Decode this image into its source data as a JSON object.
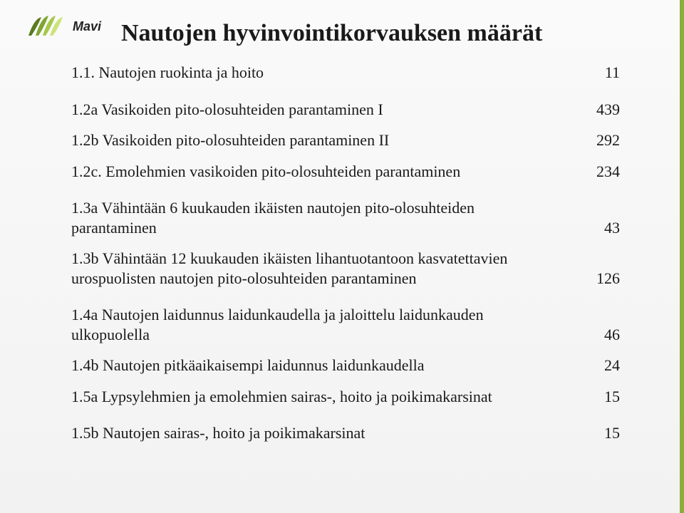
{
  "logo": {
    "text": "Mavi",
    "text_color": "#222222",
    "fontsize": 18,
    "leaf_colors": [
      "#5a7a1f",
      "#7ea62e",
      "#a6c84a",
      "#cde37a"
    ]
  },
  "title": {
    "text": "Nautojen hyvinvointikorvauksen määrät",
    "fontsize": 34,
    "color": "#1a1a1a"
  },
  "body": {
    "fontsize": 22,
    "color": "#1a1a1a",
    "line_height": 1.25
  },
  "items": [
    {
      "label": "1.1. Nautojen ruokinta ja hoito",
      "value": "11",
      "gap_after": true
    },
    {
      "label": "1.2a Vasikoiden pito-olosuhteiden parantaminen I",
      "value": "439",
      "gap_after": false
    },
    {
      "label": "1.2b Vasikoiden pito-olosuhteiden parantaminen II",
      "value": "292",
      "gap_after": false
    },
    {
      "label": "1.2c. Emolehmien vasikoiden pito-olosuhteiden parantaminen",
      "value": "234",
      "gap_after": true
    },
    {
      "label": "1.3a Vähintään 6 kuukauden ikäisten nautojen pito-olosuhteiden parantaminen",
      "value": "43",
      "gap_after": false
    },
    {
      "label": "1.3b Vähintään 12 kuukauden ikäisten lihantuotantoon kasvatettavien urospuolisten nautojen pito-olosuhteiden parantaminen",
      "value": "126",
      "gap_after": true
    },
    {
      "label": "1.4a Nautojen laidunnus laidunkaudella ja jaloittelu laidunkauden ulkopuolella",
      "value": "46",
      "gap_after": false
    },
    {
      "label": "1.4b Nautojen pitkäaikaisempi laidunnus laidunkaudella",
      "value": "24",
      "gap_after": false
    },
    {
      "label": "1.5a Lypsylehmien ja emolehmien sairas-, hoito ja poikimakarsinat",
      "value": "15",
      "gap_after": true
    },
    {
      "label": "1.5b Nautojen sairas-, hoito ja poikimakarsinat",
      "value": "15",
      "gap_after": false
    }
  ],
  "accent_bar_color": "#8aad3c",
  "background": "#f5f5f5"
}
